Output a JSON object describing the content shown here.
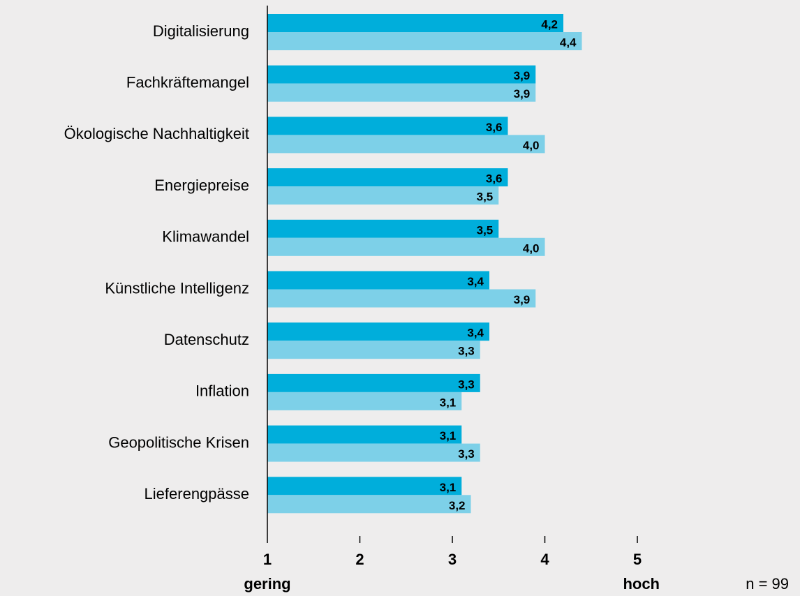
{
  "chart_data": {
    "type": "hbar",
    "categories": [
      "Digitalisierung",
      "Fachkräftemangel",
      "Ökologische Nachhaltigkeit",
      "Energiepreise",
      "Klimawandel",
      "Künstliche Intelligenz",
      "Datenschutz",
      "Inflation",
      "Geopolitische Krisen",
      "Lieferengpässe"
    ],
    "series": [
      {
        "color": "#00aedb",
        "values": [
          4.2,
          3.9,
          3.6,
          3.6,
          3.5,
          3.4,
          3.4,
          3.3,
          3.1,
          3.1
        ],
        "value_labels": [
          "4,2",
          "3,9",
          "3,6",
          "3,6",
          "3,5",
          "3,4",
          "3,4",
          "3,3",
          "3,1",
          "3,1"
        ]
      },
      {
        "color": "#7dd0e8",
        "values": [
          4.4,
          3.9,
          4.0,
          3.5,
          4.0,
          3.9,
          3.3,
          3.1,
          3.3,
          3.2
        ],
        "value_labels": [
          "4,4",
          "3,9",
          "4,0",
          "3,5",
          "4,0",
          "3,9",
          "3,3",
          "3,1",
          "3,3",
          "3,2"
        ]
      }
    ],
    "xlim": [
      1,
      5
    ],
    "xticks": [
      1,
      2,
      3,
      4,
      5
    ],
    "annotations": [
      "gering",
      "hoch",
      "n = 99"
    ]
  }
}
